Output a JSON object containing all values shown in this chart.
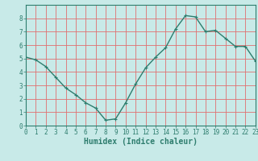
{
  "x": [
    0,
    1,
    2,
    3,
    4,
    5,
    6,
    7,
    8,
    9,
    10,
    11,
    12,
    13,
    14,
    15,
    16,
    17,
    18,
    19,
    20,
    21,
    22,
    23
  ],
  "y": [
    5.1,
    4.9,
    4.4,
    3.6,
    2.8,
    2.3,
    1.7,
    1.3,
    0.4,
    0.5,
    1.7,
    3.1,
    4.3,
    5.1,
    5.8,
    7.2,
    8.2,
    8.1,
    7.0,
    7.1,
    6.5,
    5.9,
    5.9,
    4.8
  ],
  "line_color": "#2e7d6e",
  "marker": "+",
  "marker_size": 3,
  "bg_color": "#c8eae8",
  "grid_color": "#e07070",
  "xlabel": "Humidex (Indice chaleur)",
  "xlim": [
    0,
    23
  ],
  "ylim": [
    0,
    9
  ],
  "xticks": [
    0,
    1,
    2,
    3,
    4,
    5,
    6,
    7,
    8,
    9,
    10,
    11,
    12,
    13,
    14,
    15,
    16,
    17,
    18,
    19,
    20,
    21,
    22,
    23
  ],
  "yticks": [
    0,
    1,
    2,
    3,
    4,
    5,
    6,
    7,
    8
  ],
  "tick_fontsize": 5.5,
  "label_fontsize": 7.0,
  "linewidth": 1.0
}
